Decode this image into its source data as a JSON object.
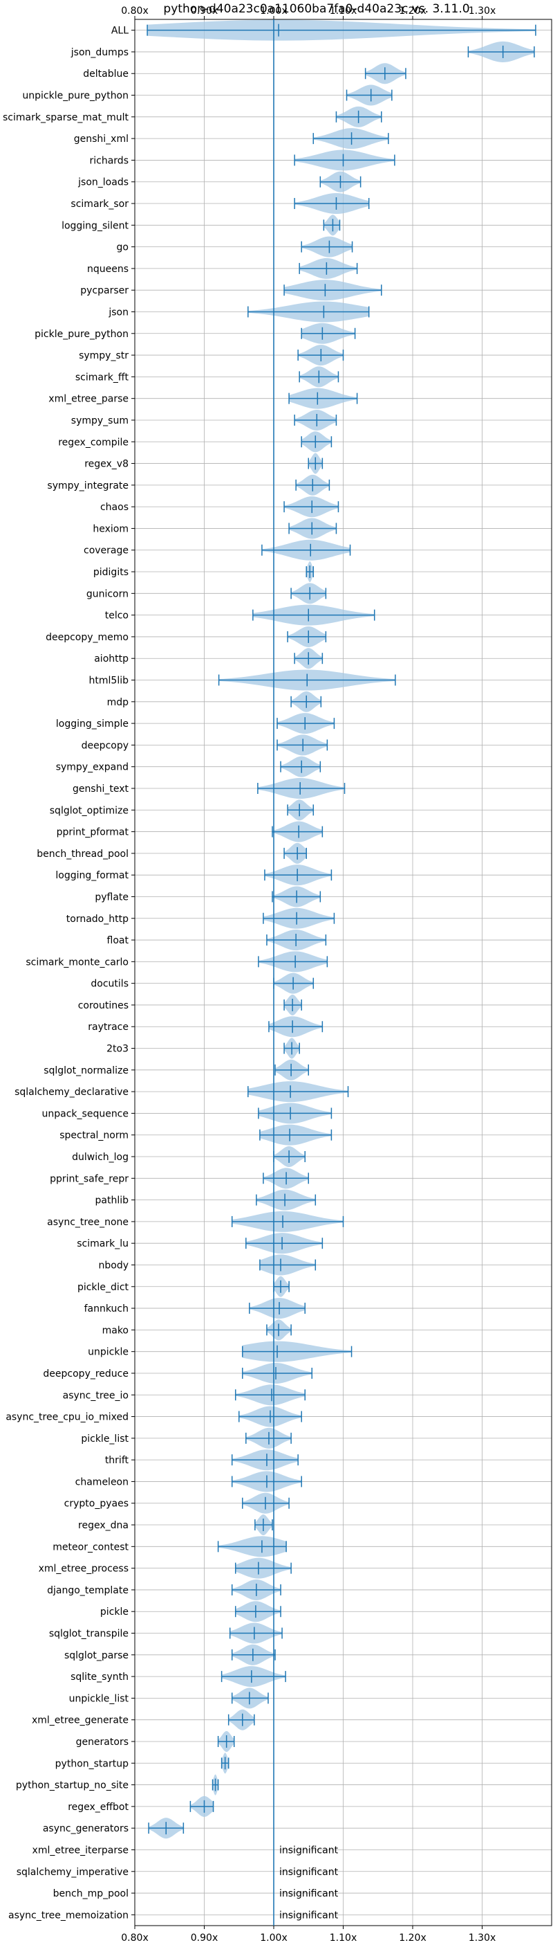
{
  "chart_data": {
    "type": "violin",
    "title": "python-d40a23c0a11060ba7fa0-d40a23c vs. 3.11.0",
    "xlabel": "",
    "ylabel": "",
    "xlim": [
      0.8,
      1.4
    ],
    "xticks": [
      0.8,
      0.9,
      1.0,
      1.1,
      1.2,
      1.3
    ],
    "xtick_labels": [
      "0.80x",
      "0.90x",
      "1.00x",
      "1.10x",
      "1.20x",
      "1.30x"
    ],
    "reference_line": 1.0,
    "grid": true,
    "colors": {
      "violin": "#a6c8e4",
      "line": "#1f77b4"
    },
    "insignificant_label": "insignificant",
    "benchmarks": [
      {
        "name": "ALL",
        "min": 0.818,
        "max": 1.377,
        "median": 1.007
      },
      {
        "name": "json_dumps",
        "min": 1.28,
        "max": 1.375,
        "median": 1.33
      },
      {
        "name": "deltablue",
        "min": 1.132,
        "max": 1.19,
        "median": 1.16
      },
      {
        "name": "unpickle_pure_python",
        "min": 1.105,
        "max": 1.17,
        "median": 1.14
      },
      {
        "name": "scimark_sparse_mat_mult",
        "min": 1.09,
        "max": 1.155,
        "median": 1.122
      },
      {
        "name": "genshi_xml",
        "min": 1.057,
        "max": 1.165,
        "median": 1.112
      },
      {
        "name": "richards",
        "min": 1.03,
        "max": 1.174,
        "median": 1.1
      },
      {
        "name": "json_loads",
        "min": 1.067,
        "max": 1.125,
        "median": 1.096
      },
      {
        "name": "scimark_sor",
        "min": 1.03,
        "max": 1.137,
        "median": 1.09
      },
      {
        "name": "logging_silent",
        "min": 1.072,
        "max": 1.095,
        "median": 1.085
      },
      {
        "name": "go",
        "min": 1.04,
        "max": 1.113,
        "median": 1.08
      },
      {
        "name": "nqueens",
        "min": 1.037,
        "max": 1.12,
        "median": 1.076
      },
      {
        "name": "pycparser",
        "min": 1.015,
        "max": 1.155,
        "median": 1.074
      },
      {
        "name": "json",
        "min": 0.963,
        "max": 1.137,
        "median": 1.072
      },
      {
        "name": "pickle_pure_python",
        "min": 1.04,
        "max": 1.117,
        "median": 1.07
      },
      {
        "name": "sympy_str",
        "min": 1.035,
        "max": 1.1,
        "median": 1.068
      },
      {
        "name": "scimark_fft",
        "min": 1.037,
        "max": 1.093,
        "median": 1.065
      },
      {
        "name": "xml_etree_parse",
        "min": 1.022,
        "max": 1.12,
        "median": 1.063
      },
      {
        "name": "sympy_sum",
        "min": 1.03,
        "max": 1.09,
        "median": 1.062
      },
      {
        "name": "regex_compile",
        "min": 1.04,
        "max": 1.083,
        "median": 1.06
      },
      {
        "name": "regex_v8",
        "min": 1.05,
        "max": 1.07,
        "median": 1.06
      },
      {
        "name": "sympy_integrate",
        "min": 1.032,
        "max": 1.08,
        "median": 1.056
      },
      {
        "name": "chaos",
        "min": 1.015,
        "max": 1.093,
        "median": 1.055
      },
      {
        "name": "hexiom",
        "min": 1.022,
        "max": 1.09,
        "median": 1.055
      },
      {
        "name": "coverage",
        "min": 0.983,
        "max": 1.11,
        "median": 1.053
      },
      {
        "name": "pidigits",
        "min": 1.047,
        "max": 1.057,
        "median": 1.052
      },
      {
        "name": "gunicorn",
        "min": 1.025,
        "max": 1.075,
        "median": 1.052
      },
      {
        "name": "telco",
        "min": 0.97,
        "max": 1.145,
        "median": 1.05
      },
      {
        "name": "deepcopy_memo",
        "min": 1.02,
        "max": 1.075,
        "median": 1.05
      },
      {
        "name": "aiohttp",
        "min": 1.03,
        "max": 1.07,
        "median": 1.05
      },
      {
        "name": "html5lib",
        "min": 0.921,
        "max": 1.175,
        "median": 1.048
      },
      {
        "name": "mdp",
        "min": 1.025,
        "max": 1.068,
        "median": 1.047
      },
      {
        "name": "logging_simple",
        "min": 1.005,
        "max": 1.087,
        "median": 1.045
      },
      {
        "name": "deepcopy",
        "min": 1.005,
        "max": 1.077,
        "median": 1.042
      },
      {
        "name": "sympy_expand",
        "min": 1.01,
        "max": 1.067,
        "median": 1.04
      },
      {
        "name": "genshi_text",
        "min": 0.977,
        "max": 1.102,
        "median": 1.038
      },
      {
        "name": "sqlglot_optimize",
        "min": 1.02,
        "max": 1.057,
        "median": 1.037
      },
      {
        "name": "pprint_pformat",
        "min": 0.998,
        "max": 1.07,
        "median": 1.036
      },
      {
        "name": "bench_thread_pool",
        "min": 1.015,
        "max": 1.047,
        "median": 1.034
      },
      {
        "name": "logging_format",
        "min": 0.987,
        "max": 1.083,
        "median": 1.034
      },
      {
        "name": "pyflate",
        "min": 0.998,
        "max": 1.067,
        "median": 1.033
      },
      {
        "name": "tornado_http",
        "min": 0.985,
        "max": 1.087,
        "median": 1.033
      },
      {
        "name": "float",
        "min": 0.99,
        "max": 1.075,
        "median": 1.032
      },
      {
        "name": "scimark_monte_carlo",
        "min": 0.978,
        "max": 1.077,
        "median": 1.031
      },
      {
        "name": "docutils",
        "min": 1.0,
        "max": 1.057,
        "median": 1.028
      },
      {
        "name": "coroutines",
        "min": 1.015,
        "max": 1.04,
        "median": 1.027
      },
      {
        "name": "raytrace",
        "min": 0.993,
        "max": 1.07,
        "median": 1.027
      },
      {
        "name": "2to3",
        "min": 1.015,
        "max": 1.037,
        "median": 1.026
      },
      {
        "name": "sqlglot_normalize",
        "min": 1.002,
        "max": 1.05,
        "median": 1.025
      },
      {
        "name": "sqlalchemy_declarative",
        "min": 0.963,
        "max": 1.107,
        "median": 1.024
      },
      {
        "name": "unpack_sequence",
        "min": 0.978,
        "max": 1.083,
        "median": 1.024
      },
      {
        "name": "spectral_norm",
        "min": 0.98,
        "max": 1.083,
        "median": 1.023
      },
      {
        "name": "dulwich_log",
        "min": 1.0,
        "max": 1.045,
        "median": 1.022
      },
      {
        "name": "pprint_safe_repr",
        "min": 0.985,
        "max": 1.05,
        "median": 1.018
      },
      {
        "name": "pathlib",
        "min": 0.975,
        "max": 1.06,
        "median": 1.016
      },
      {
        "name": "async_tree_none",
        "min": 0.94,
        "max": 1.1,
        "median": 1.013
      },
      {
        "name": "scimark_lu",
        "min": 0.96,
        "max": 1.07,
        "median": 1.012
      },
      {
        "name": "nbody",
        "min": 0.98,
        "max": 1.06,
        "median": 1.01
      },
      {
        "name": "pickle_dict",
        "min": 1.0,
        "max": 1.022,
        "median": 1.01
      },
      {
        "name": "fannkuch",
        "min": 0.965,
        "max": 1.045,
        "median": 1.008
      },
      {
        "name": "mako",
        "min": 0.99,
        "max": 1.025,
        "median": 1.007
      },
      {
        "name": "unpickle",
        "min": 0.955,
        "max": 1.112,
        "median": 1.005
      },
      {
        "name": "deepcopy_reduce",
        "min": 0.955,
        "max": 1.055,
        "median": 1.003
      },
      {
        "name": "async_tree_io",
        "min": 0.945,
        "max": 1.045,
        "median": 0.997
      },
      {
        "name": "async_tree_cpu_io_mixed",
        "min": 0.95,
        "max": 1.04,
        "median": 0.995
      },
      {
        "name": "pickle_list",
        "min": 0.96,
        "max": 1.025,
        "median": 0.993
      },
      {
        "name": "thrift",
        "min": 0.94,
        "max": 1.035,
        "median": 0.99
      },
      {
        "name": "chameleon",
        "min": 0.94,
        "max": 1.04,
        "median": 0.99
      },
      {
        "name": "crypto_pyaes",
        "min": 0.955,
        "max": 1.022,
        "median": 0.988
      },
      {
        "name": "regex_dna",
        "min": 0.973,
        "max": 0.998,
        "median": 0.985
      },
      {
        "name": "meteor_contest",
        "min": 0.92,
        "max": 1.018,
        "median": 0.983
      },
      {
        "name": "xml_etree_process",
        "min": 0.945,
        "max": 1.025,
        "median": 0.978
      },
      {
        "name": "django_template",
        "min": 0.94,
        "max": 1.01,
        "median": 0.975
      },
      {
        "name": "pickle",
        "min": 0.945,
        "max": 1.01,
        "median": 0.974
      },
      {
        "name": "sqlglot_transpile",
        "min": 0.937,
        "max": 1.012,
        "median": 0.972
      },
      {
        "name": "sqlglot_parse",
        "min": 0.94,
        "max": 1.002,
        "median": 0.97
      },
      {
        "name": "sqlite_synth",
        "min": 0.925,
        "max": 1.017,
        "median": 0.968
      },
      {
        "name": "unpickle_list",
        "min": 0.94,
        "max": 0.992,
        "median": 0.965
      },
      {
        "name": "xml_etree_generate",
        "min": 0.935,
        "max": 0.972,
        "median": 0.955
      },
      {
        "name": "generators",
        "min": 0.92,
        "max": 0.943,
        "median": 0.932
      },
      {
        "name": "python_startup",
        "min": 0.925,
        "max": 0.935,
        "median": 0.93
      },
      {
        "name": "python_startup_no_site",
        "min": 0.912,
        "max": 0.92,
        "median": 0.916
      },
      {
        "name": "regex_effbot",
        "min": 0.88,
        "max": 0.913,
        "median": 0.9
      },
      {
        "name": "async_generators",
        "min": 0.82,
        "max": 0.87,
        "median": 0.845
      },
      {
        "name": "xml_etree_iterparse",
        "insignificant": true
      },
      {
        "name": "sqlalchemy_imperative",
        "insignificant": true
      },
      {
        "name": "bench_mp_pool",
        "insignificant": true
      },
      {
        "name": "async_tree_memoization",
        "insignificant": true
      }
    ]
  }
}
